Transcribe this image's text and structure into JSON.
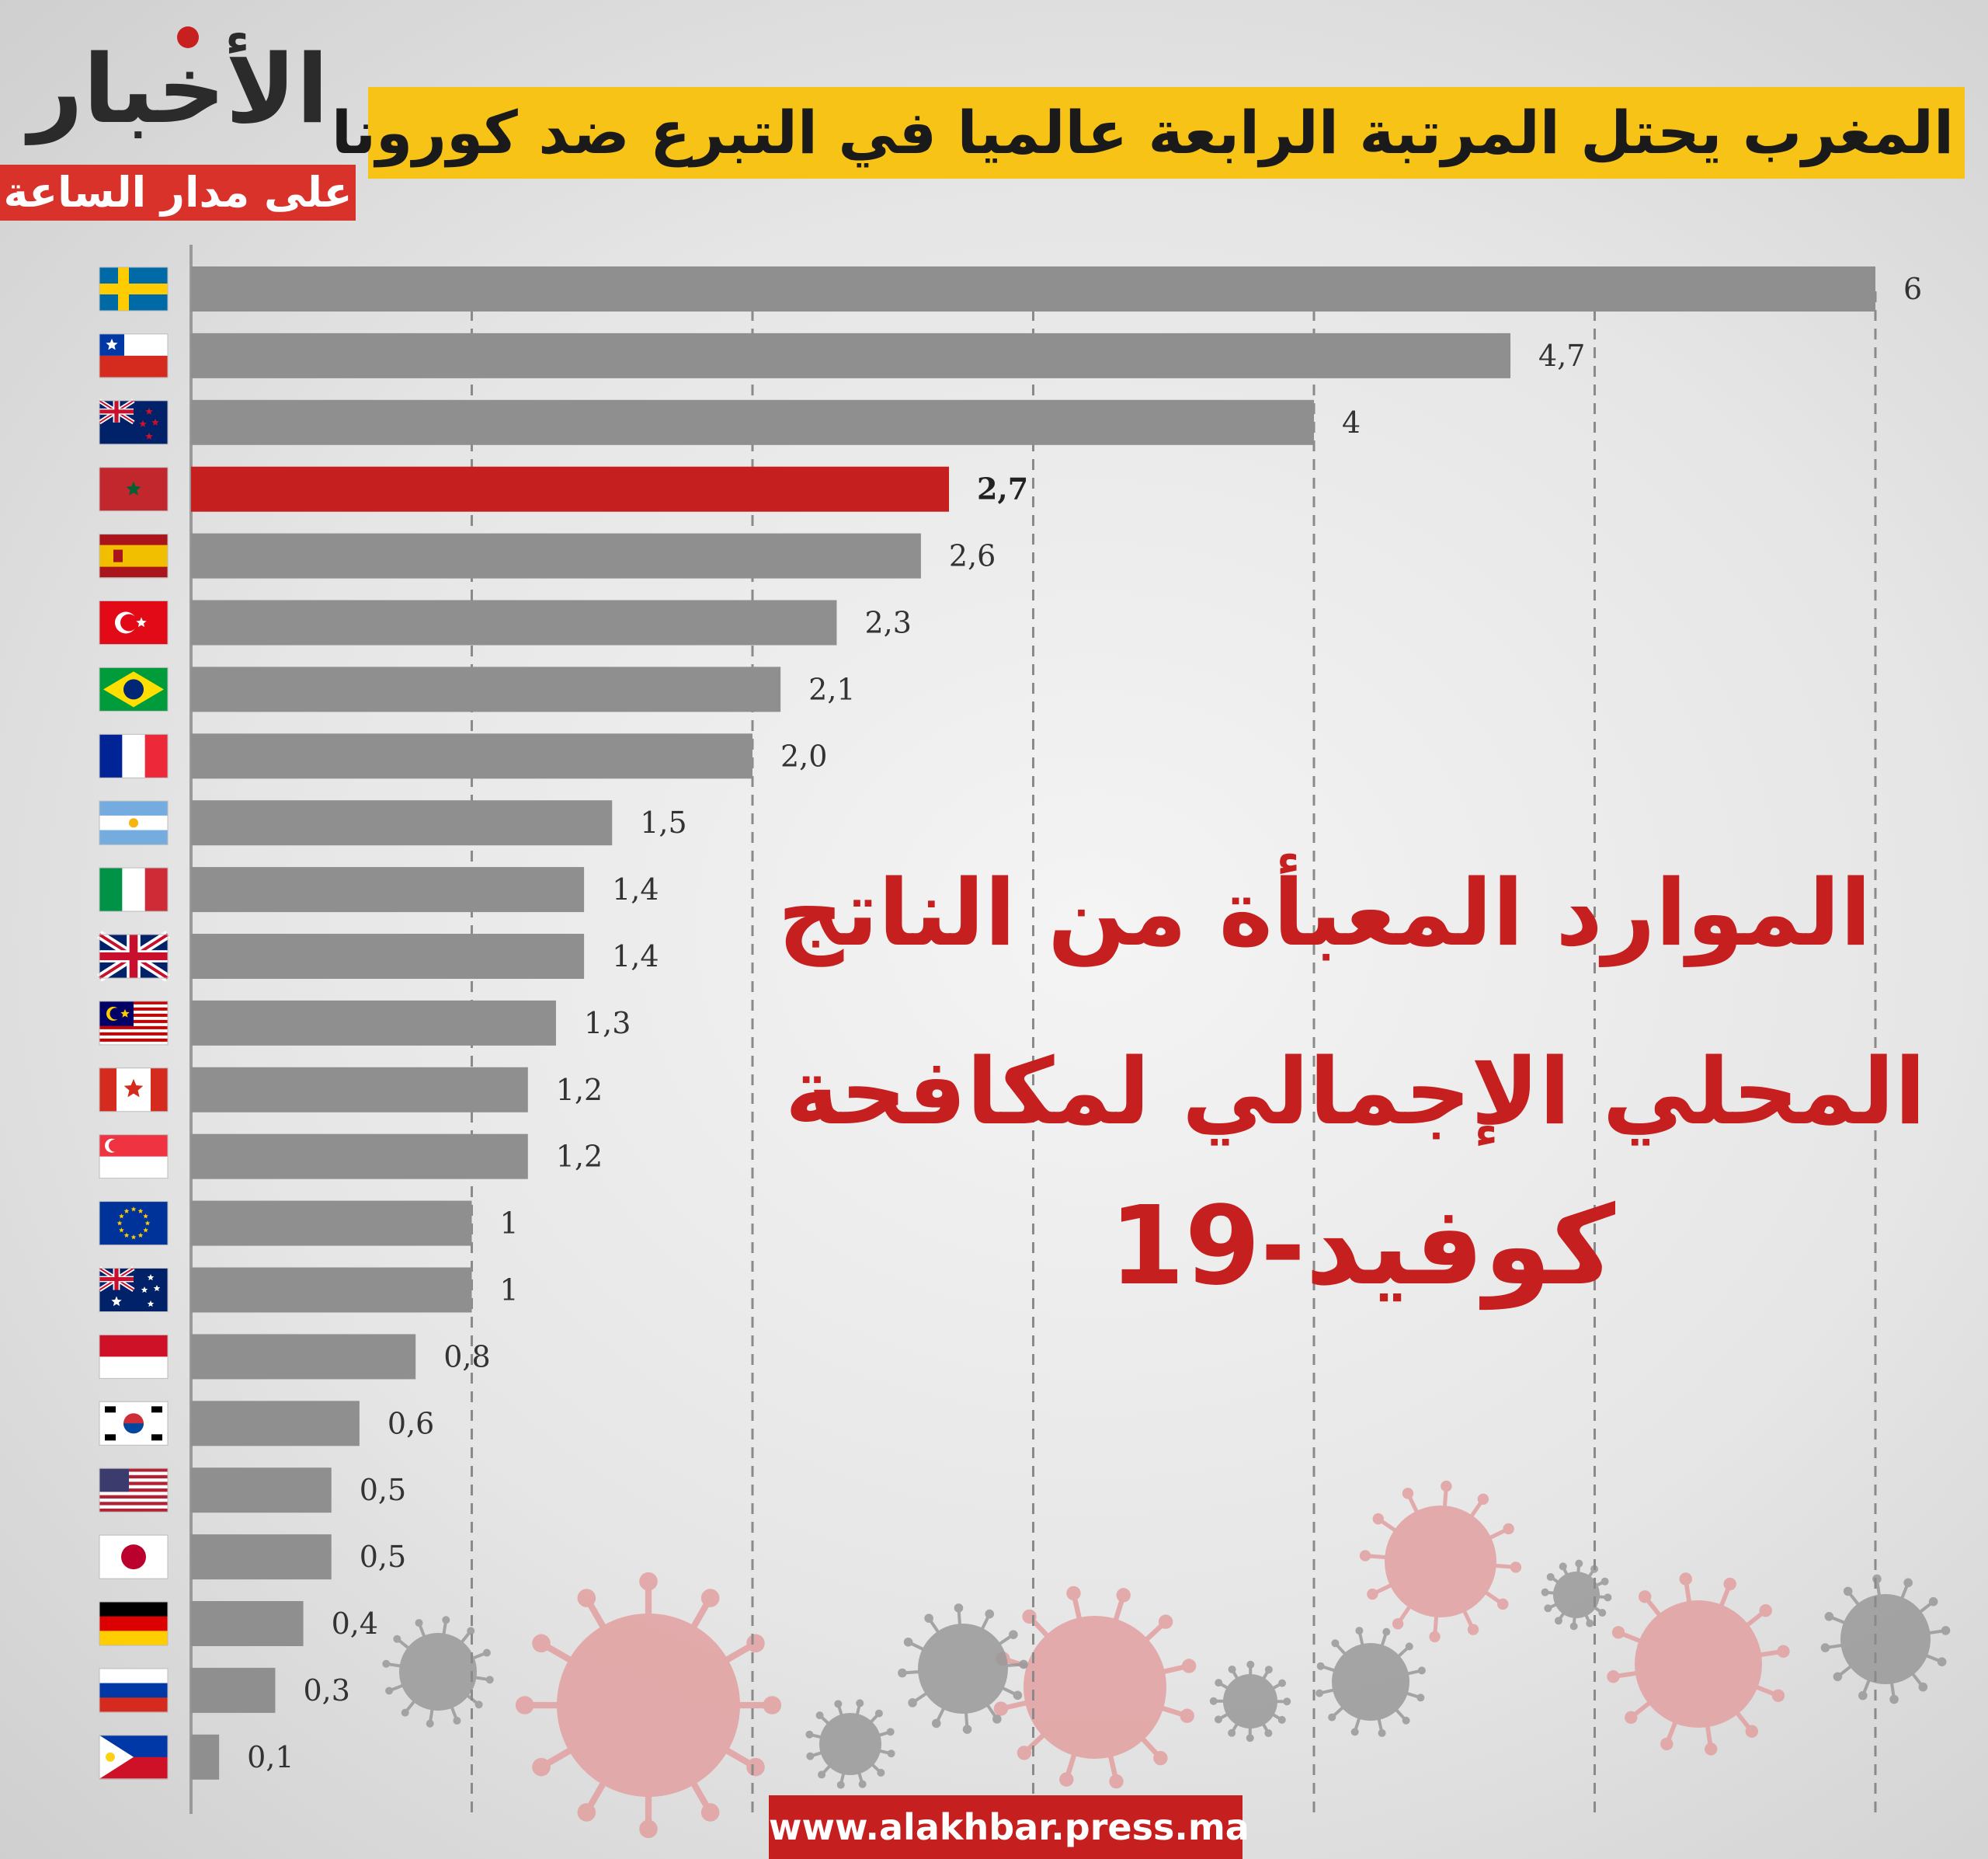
{
  "logo": {
    "title": "الأخبار",
    "subtitle": "على مدار الساعة"
  },
  "header": {
    "title": "المغرب يحتل المرتبة الرابعة عالميا في التبرع ضد كورونا"
  },
  "overlay": {
    "line1": "الموارد المعبأة من الناتج",
    "line2": "المحلي الإجمالي لمكافحة",
    "line3": "كوفيد-19"
  },
  "footer": {
    "url": "www.alakhbar.press.ma"
  },
  "colors": {
    "bar": "#8f8f8f",
    "highlight": "#c5201f",
    "title_bg": "#f6c316",
    "virus_red": "#e2a0a0",
    "virus_gray": "#999999"
  },
  "chart_data": {
    "type": "bar",
    "orientation": "horizontal",
    "categories": [
      "Sweden",
      "Chile",
      "New Zealand",
      "Morocco",
      "Spain",
      "Turkey",
      "Brazil",
      "France",
      "Argentina",
      "Italy",
      "United Kingdom",
      "Malaysia",
      "Canada",
      "Singapore",
      "European Union",
      "Australia",
      "Indonesia",
      "South Korea",
      "United States",
      "Japan",
      "Germany",
      "Russia",
      "Philippines"
    ],
    "category_icons": [
      "sweden-flag",
      "chile-flag",
      "new-zealand-flag",
      "morocco-flag",
      "spain-flag",
      "turkey-flag",
      "brazil-flag",
      "france-flag",
      "argentina-flag",
      "italy-flag",
      "uk-flag",
      "malaysia-flag",
      "canada-flag",
      "singapore-flag",
      "eu-flag",
      "australia-flag",
      "indonesia-flag",
      "south-korea-flag",
      "usa-flag",
      "japan-flag",
      "germany-flag",
      "russia-flag",
      "philippines-flag"
    ],
    "values": [
      6,
      4.7,
      4,
      2.7,
      2.6,
      2.3,
      2.1,
      2.0,
      1.5,
      1.4,
      1.4,
      1.3,
      1.2,
      1.2,
      1,
      1,
      0.8,
      0.6,
      0.5,
      0.5,
      0.4,
      0.3,
      0.1
    ],
    "value_labels": [
      "6",
      "4,7",
      "4",
      "2,7",
      "2,6",
      "2,3",
      "2,1",
      "2,0",
      "1,5",
      "1,4",
      "1,4",
      "1,3",
      "1,2",
      "1,2",
      "1",
      "1",
      "0,8",
      "0,6",
      "0,5",
      "0,5",
      "0,4",
      "0,3",
      "0,1"
    ],
    "highlight_index": 3,
    "xlim": [
      0,
      6
    ],
    "grid": true,
    "grid_style": "dashed-vertical"
  }
}
